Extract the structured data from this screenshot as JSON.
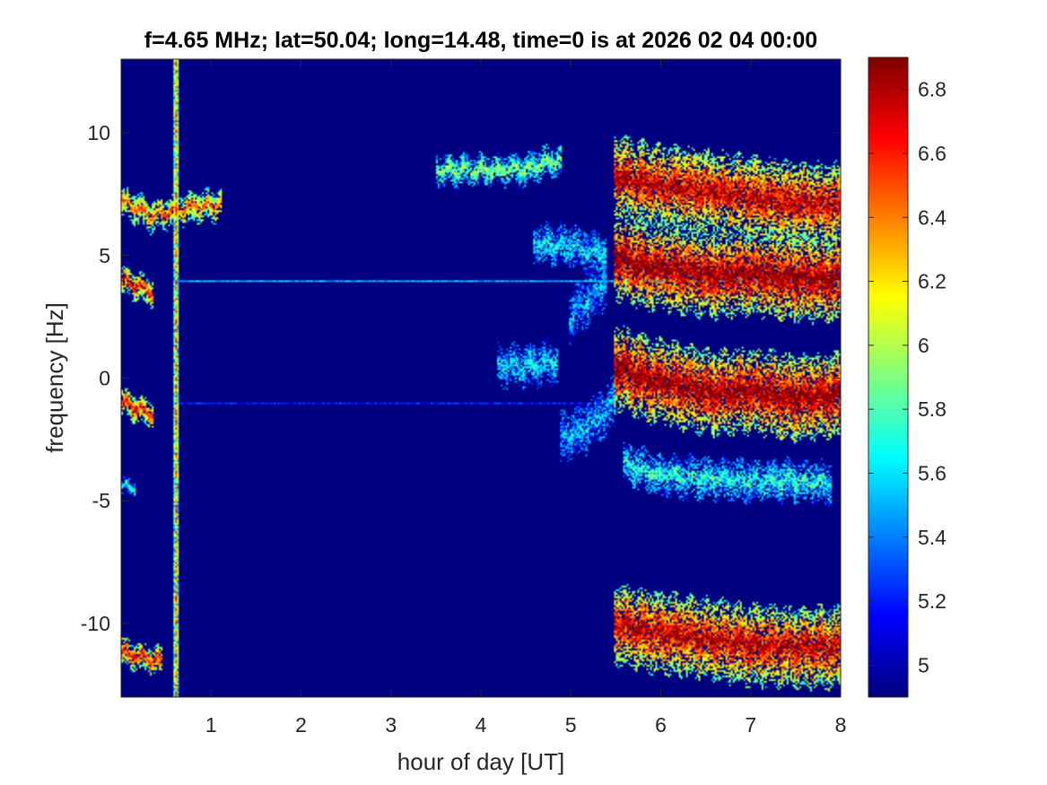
{
  "chart_data": {
    "type": "heatmap",
    "title": "f=4.65 MHz;  lat=50.04; long=14.48, time=0 is at 2026 02 04 00:00",
    "xlabel": "hour of day [UT]",
    "ylabel": "frequency [Hz]",
    "xlim": [
      0,
      8
    ],
    "ylim": [
      -13,
      13
    ],
    "xticks": [
      1,
      2,
      3,
      4,
      5,
      6,
      7,
      8
    ],
    "yticks": [
      -10,
      -5,
      0,
      5,
      10
    ],
    "colormap": "jet",
    "color_range": [
      4.9,
      6.9
    ],
    "colorbar_ticks": [
      5,
      5.2,
      5.4,
      5.6,
      5.8,
      6,
      6.2,
      6.4,
      6.6,
      6.8
    ],
    "background_level": 4.9,
    "colors": {
      "background": "#00008f",
      "frame": "#262626"
    },
    "features": {
      "vertical_interference_line": {
        "x": 0.6,
        "level": 6.3
      },
      "steady_horizontal_lines": [
        {
          "y": 4.0,
          "x_range": [
            0.6,
            8.0
          ],
          "level": 5.5
        },
        {
          "y": -1.0,
          "x_range": [
            0.6,
            5.5
          ],
          "level": 5.2
        }
      ],
      "traces": [
        {
          "level": 6.4,
          "spread": 0.6,
          "points": [
            [
              0.0,
              7.2
            ],
            [
              0.15,
              7.0
            ],
            [
              0.35,
              6.6
            ],
            [
              0.55,
              6.8
            ],
            [
              0.8,
              7.0
            ],
            [
              1.1,
              7.1
            ]
          ]
        },
        {
          "level": 6.6,
          "spread": 0.5,
          "points": [
            [
              0.0,
              4.0
            ],
            [
              0.15,
              3.8
            ],
            [
              0.35,
              3.5
            ]
          ]
        },
        {
          "level": 6.6,
          "spread": 0.5,
          "points": [
            [
              0.0,
              -1.0
            ],
            [
              0.15,
              -1.2
            ],
            [
              0.35,
              -1.5
            ]
          ]
        },
        {
          "level": 5.6,
          "spread": 0.3,
          "points": [
            [
              0.0,
              -4.4
            ],
            [
              0.15,
              -4.5
            ]
          ]
        },
        {
          "level": 6.6,
          "spread": 0.5,
          "points": [
            [
              0.0,
              -11.2
            ],
            [
              0.2,
              -11.4
            ],
            [
              0.45,
              -11.6
            ]
          ]
        },
        {
          "level": 5.9,
          "spread": 0.6,
          "points": [
            [
              3.5,
              8.5
            ],
            [
              4.0,
              8.5
            ],
            [
              4.5,
              8.5
            ],
            [
              4.7,
              8.8
            ],
            [
              4.9,
              8.9
            ]
          ]
        },
        {
          "level": 5.6,
          "spread": 0.8,
          "points": [
            [
              4.6,
              5.5
            ],
            [
              5.0,
              5.4
            ],
            [
              5.4,
              5.0
            ]
          ]
        },
        {
          "level": 5.6,
          "spread": 0.8,
          "points": [
            [
              4.2,
              0.5
            ],
            [
              4.6,
              0.5
            ],
            [
              4.85,
              0.7
            ]
          ]
        },
        {
          "level": 5.5,
          "spread": 1.0,
          "points": [
            [
              5.0,
              2.5
            ],
            [
              5.2,
              3.2
            ],
            [
              5.4,
              4.0
            ]
          ]
        },
        {
          "level": 5.5,
          "spread": 1.0,
          "points": [
            [
              4.9,
              -2.5
            ],
            [
              5.2,
              -2.0
            ],
            [
              5.5,
              -1.0
            ]
          ]
        },
        {
          "level": 6.8,
          "spread": 1.6,
          "points": [
            [
              5.5,
              8.3
            ],
            [
              5.8,
              8.0
            ],
            [
              6.2,
              7.8
            ],
            [
              6.6,
              7.6
            ],
            [
              7.0,
              7.4
            ],
            [
              7.5,
              7.2
            ],
            [
              8.0,
              7.1
            ]
          ]
        },
        {
          "level": 6.9,
          "spread": 1.7,
          "points": [
            [
              5.5,
              5.0
            ],
            [
              5.8,
              4.6
            ],
            [
              6.2,
              4.4
            ],
            [
              6.6,
              4.2
            ],
            [
              7.0,
              4.3
            ],
            [
              7.5,
              4.1
            ],
            [
              8.0,
              4.0
            ]
          ]
        },
        {
          "level": 6.9,
          "spread": 1.7,
          "points": [
            [
              5.5,
              0.5
            ],
            [
              5.8,
              0.0
            ],
            [
              6.2,
              -0.3
            ],
            [
              6.6,
              -0.6
            ],
            [
              7.0,
              -0.5
            ],
            [
              7.5,
              -0.8
            ],
            [
              8.0,
              -0.7
            ]
          ]
        },
        {
          "level": 5.7,
          "spread": 0.8,
          "points": [
            [
              5.6,
              -3.5
            ],
            [
              6.0,
              -4.0
            ],
            [
              6.5,
              -4.1
            ],
            [
              7.0,
              -4.2
            ],
            [
              7.5,
              -4.2
            ],
            [
              7.9,
              -4.3
            ]
          ]
        },
        {
          "level": 6.8,
          "spread": 1.6,
          "points": [
            [
              5.5,
              -10.0
            ],
            [
              5.8,
              -10.3
            ],
            [
              6.2,
              -10.5
            ],
            [
              6.6,
              -10.7
            ],
            [
              7.0,
              -10.9
            ],
            [
              7.5,
              -11.0
            ],
            [
              8.0,
              -11.0
            ]
          ]
        }
      ]
    }
  }
}
